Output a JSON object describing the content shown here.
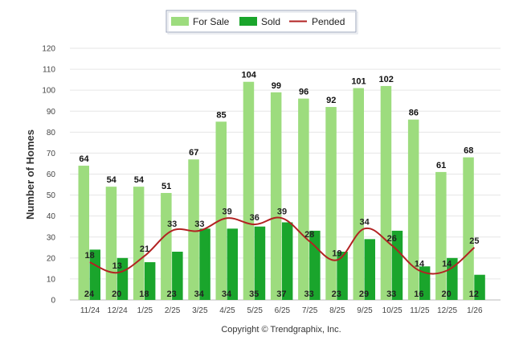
{
  "chart_data": {
    "type": "bar",
    "categories": [
      "11/24",
      "12/24",
      "1/25",
      "2/25",
      "3/25",
      "4/25",
      "5/25",
      "6/25",
      "7/25",
      "8/25",
      "9/25",
      "10/25",
      "11/25",
      "12/25",
      "1/26"
    ],
    "series": [
      {
        "name": "For Sale",
        "kind": "bar",
        "color": "#9ddc7e",
        "values": [
          64,
          54,
          54,
          51,
          67,
          85,
          104,
          99,
          96,
          92,
          101,
          102,
          86,
          61,
          68
        ]
      },
      {
        "name": "Sold",
        "kind": "bar",
        "color": "#1aa52c",
        "values": [
          24,
          20,
          18,
          23,
          34,
          34,
          35,
          37,
          33,
          23,
          29,
          33,
          16,
          20,
          12
        ]
      },
      {
        "name": "Pended",
        "kind": "line",
        "color": "#b22222",
        "values": [
          18,
          13,
          21,
          33,
          33,
          39,
          36,
          39,
          28,
          19,
          34,
          26,
          14,
          14,
          25
        ]
      }
    ],
    "ylabel": "Number of Homes",
    "ylim": [
      0,
      120
    ],
    "yticks": [
      0,
      10,
      20,
      30,
      40,
      50,
      60,
      70,
      80,
      90,
      100,
      110,
      120
    ],
    "grid": true,
    "legend_position": "top-center"
  },
  "footer": {
    "copyright": "Copyright © Trendgraphix, Inc."
  }
}
